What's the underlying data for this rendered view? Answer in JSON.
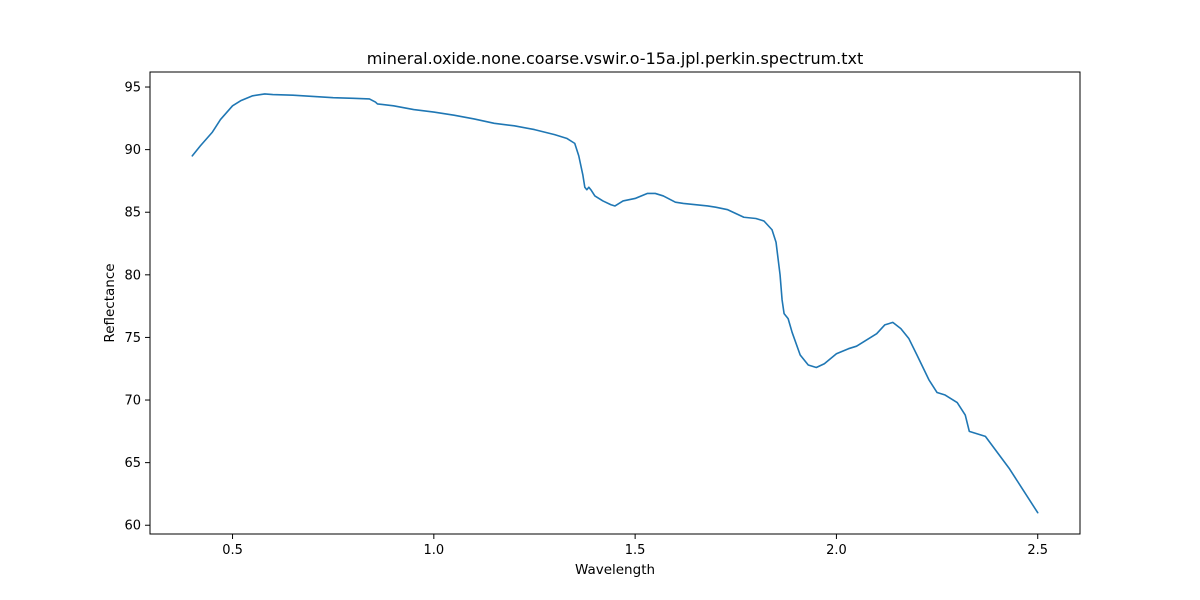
{
  "chart_data": {
    "type": "line",
    "title": "mineral.oxide.none.coarse.vswir.o-15a.jpl.perkin.spectrum.txt",
    "xlabel": "Wavelength",
    "ylabel": "Reflectance",
    "xlim": [
      0.295,
      2.605
    ],
    "ylim": [
      59.3,
      96.2
    ],
    "xticks": [
      0.5,
      1.0,
      1.5,
      2.0,
      2.5
    ],
    "xtick_labels": [
      "0.5",
      "1.0",
      "1.5",
      "2.0",
      "2.5"
    ],
    "yticks": [
      60,
      65,
      70,
      75,
      80,
      85,
      90,
      95
    ],
    "ytick_labels": [
      "60",
      "65",
      "70",
      "75",
      "80",
      "85",
      "90",
      "95"
    ],
    "grid": false,
    "legend": "none",
    "series": [
      {
        "color": "#1f77b4",
        "x": [
          0.4,
          0.42,
          0.45,
          0.47,
          0.5,
          0.52,
          0.55,
          0.58,
          0.6,
          0.65,
          0.7,
          0.75,
          0.8,
          0.84,
          0.855,
          0.86,
          0.9,
          0.95,
          1.0,
          1.05,
          1.1,
          1.15,
          1.2,
          1.25,
          1.3,
          1.33,
          1.35,
          1.36,
          1.37,
          1.375,
          1.38,
          1.385,
          1.39,
          1.4,
          1.42,
          1.44,
          1.45,
          1.47,
          1.5,
          1.53,
          1.55,
          1.57,
          1.6,
          1.62,
          1.65,
          1.68,
          1.7,
          1.73,
          1.75,
          1.77,
          1.8,
          1.82,
          1.84,
          1.85,
          1.86,
          1.865,
          1.87,
          1.875,
          1.88,
          1.89,
          1.91,
          1.93,
          1.95,
          1.97,
          2.0,
          2.03,
          2.05,
          2.07,
          2.1,
          2.12,
          2.14,
          2.16,
          2.18,
          2.2,
          2.23,
          2.25,
          2.27,
          2.3,
          2.32,
          2.33,
          2.35,
          2.37,
          2.4,
          2.43,
          2.46,
          2.5
        ],
        "y": [
          89.5,
          90.3,
          91.4,
          92.4,
          93.5,
          93.9,
          94.3,
          94.45,
          94.4,
          94.35,
          94.25,
          94.15,
          94.1,
          94.05,
          93.8,
          93.65,
          93.5,
          93.2,
          93.0,
          92.75,
          92.45,
          92.1,
          91.9,
          91.6,
          91.2,
          90.9,
          90.5,
          89.5,
          88.0,
          87.0,
          86.8,
          87.0,
          86.8,
          86.3,
          85.9,
          85.6,
          85.5,
          85.9,
          86.1,
          86.5,
          86.5,
          86.3,
          85.8,
          85.7,
          85.6,
          85.5,
          85.4,
          85.2,
          84.9,
          84.6,
          84.5,
          84.3,
          83.6,
          82.6,
          80.0,
          78.0,
          76.9,
          76.7,
          76.5,
          75.4,
          73.6,
          72.8,
          72.6,
          72.9,
          73.7,
          74.1,
          74.3,
          74.7,
          75.3,
          76.0,
          76.2,
          75.7,
          74.9,
          73.6,
          71.6,
          70.6,
          70.4,
          69.8,
          68.8,
          67.5,
          67.3,
          67.1,
          65.8,
          64.5,
          63.0,
          61.0
        ]
      }
    ]
  }
}
